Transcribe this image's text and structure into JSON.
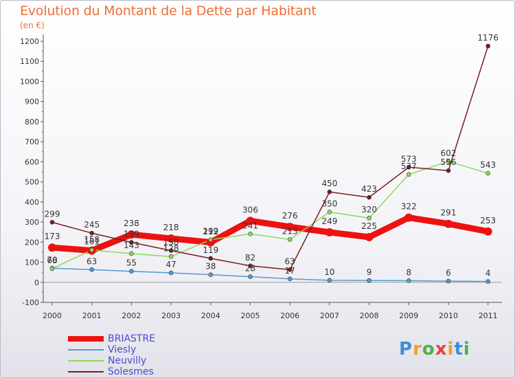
{
  "title": "Evolution du Montant de la Dette par Habitant",
  "unit_label": "(en €)",
  "brand": "Proxiti",
  "chart_data": {
    "type": "line",
    "categories": [
      "2000",
      "2001",
      "2002",
      "2003",
      "2004",
      "2005",
      "2006",
      "2007",
      "2008",
      "2009",
      "2010",
      "2011"
    ],
    "ylim": [
      -100,
      1200
    ],
    "yticks": [
      -100,
      0,
      100,
      200,
      300,
      400,
      500,
      600,
      700,
      800,
      900,
      1000,
      1100,
      1200
    ],
    "grid": false,
    "legend_position": "bottom-left",
    "series": [
      {
        "name": "BRIASTRE",
        "color": "#ee1111",
        "values": [
          173,
          158,
          238,
          218,
          199,
          306,
          276,
          249,
          225,
          322,
          291,
          253
        ],
        "width": 9,
        "marker": 6
      },
      {
        "name": "Viesly",
        "color": "#5599d0",
        "values": [
          70,
          63,
          55,
          47,
          38,
          28,
          17,
          10,
          9,
          8,
          6,
          4
        ],
        "width": 1.5,
        "marker": 3
      },
      {
        "name": "Neuvilly",
        "color": "#8ed85a",
        "values": [
          68,
          161,
          143,
          128,
          212,
          241,
          213,
          350,
          320,
          537,
          602,
          543
        ],
        "width": 1.5,
        "marker": 3
      },
      {
        "name": "Solesmes",
        "color": "#7a1c1c",
        "values": [
          299,
          245,
          199,
          158,
          119,
          82,
          63,
          450,
          423,
          573,
          556,
          1176
        ],
        "width": 1.5,
        "marker": 3
      }
    ]
  }
}
